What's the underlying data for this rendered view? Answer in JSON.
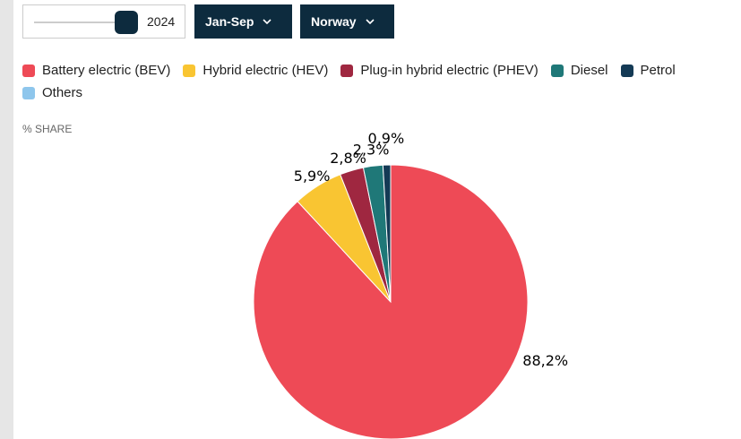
{
  "controls": {
    "year": "2024",
    "period": "Jan-Sep",
    "country": "Norway"
  },
  "chart_data": {
    "type": "pie",
    "subtitle": "% SHARE",
    "categories": [
      "Battery electric (BEV)",
      "Hybrid electric (HEV)",
      "Plug-in hybrid electric (PHEV)",
      "Diesel",
      "Petrol",
      "Others"
    ],
    "values": [
      88.2,
      5.9,
      2.8,
      2.3,
      0.9,
      0
    ],
    "value_labels": [
      "88,2%",
      "5,9%",
      "2,8%",
      "2,3%",
      "0,9%",
      null
    ],
    "colors": [
      "#ee4a56",
      "#f9c532",
      "#9f2740",
      "#1f7878",
      "#143a55",
      "#8ec6ec"
    ]
  }
}
